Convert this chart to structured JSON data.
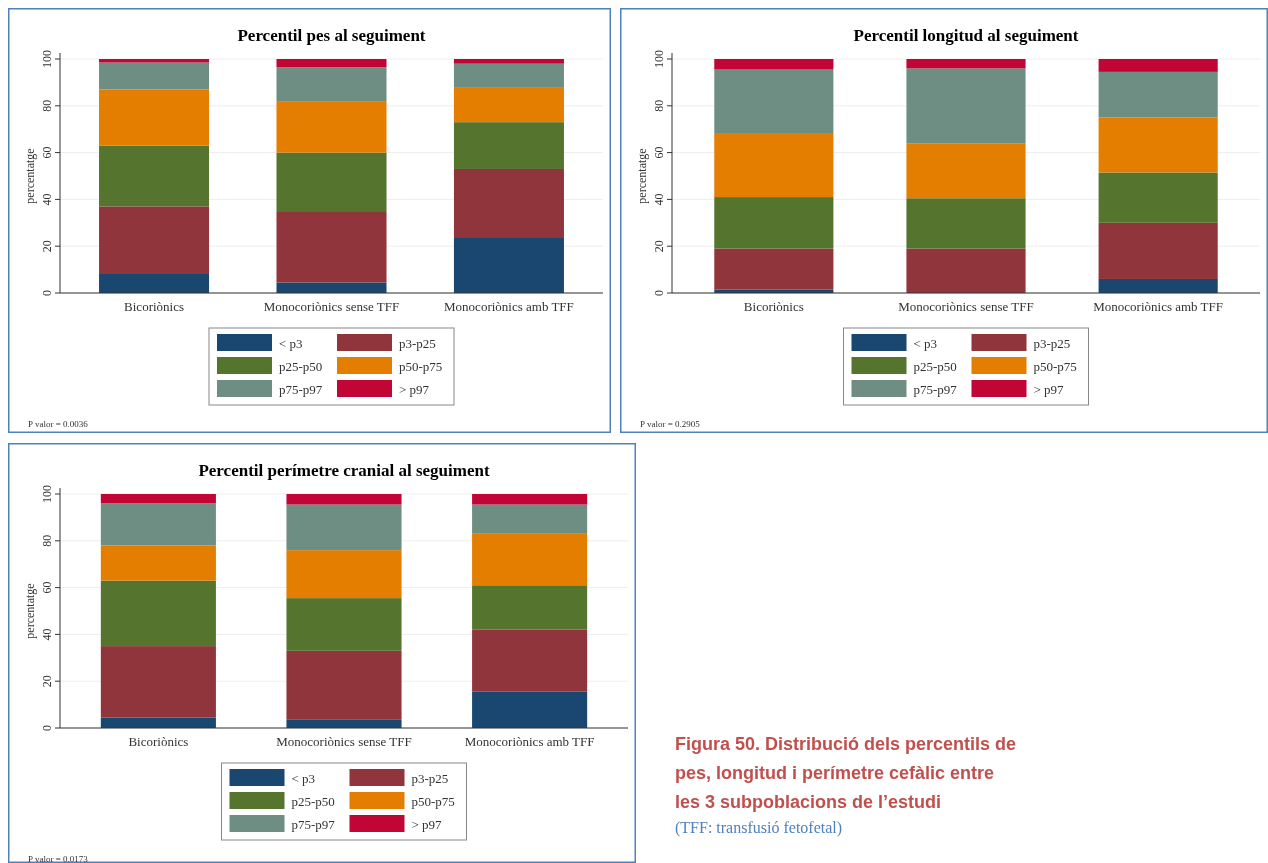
{
  "chart_data": [
    {
      "type": "bar",
      "title": "Percentil pes al seguiment",
      "ylabel": "percentatge",
      "categories": [
        "Bicoriònics",
        "Monocoriònics sense TFF",
        "Monocoriònics amb TFF"
      ],
      "stacked": true,
      "ylim": [
        0,
        100
      ],
      "yticks": [
        0,
        20,
        40,
        60,
        80,
        100
      ],
      "grid": "y",
      "legend": "bottom",
      "annotations": [
        "P valor = 0.0036"
      ],
      "series": [
        {
          "name": "< p3",
          "color": "#1a476f",
          "values": [
            8.5,
            4.5,
            23.5
          ]
        },
        {
          "name": "p3-p25",
          "color": "#90353b",
          "values": [
            28.5,
            30.5,
            29.5
          ]
        },
        {
          "name": "p25-p50",
          "color": "#55752f",
          "values": [
            26,
            25,
            20
          ]
        },
        {
          "name": "p50-p75",
          "color": "#e37e00",
          "values": [
            24,
            22,
            15
          ]
        },
        {
          "name": "p75-p97",
          "color": "#6e8e84",
          "values": [
            11.5,
            14.5,
            10
          ]
        },
        {
          "name": "> p97",
          "color": "#c10534",
          "values": [
            1.5,
            3.5,
            2
          ]
        }
      ]
    },
    {
      "type": "bar",
      "title": "Percentil longitud al seguiment",
      "ylabel": "percentatge",
      "categories": [
        "Bicoriònics",
        "Monocoriònics sense TFF",
        "Monocoriònics amb TFF"
      ],
      "stacked": true,
      "ylim": [
        0,
        100
      ],
      "yticks": [
        0,
        20,
        40,
        60,
        80,
        100
      ],
      "grid": "y",
      "legend": "bottom",
      "annotations": [
        "P valor = 0.2905"
      ],
      "series": [
        {
          "name": "< p3",
          "color": "#1a476f",
          "values": [
            1.5,
            0,
            6
          ]
        },
        {
          "name": "p3-p25",
          "color": "#90353b",
          "values": [
            17.5,
            19,
            24
          ]
        },
        {
          "name": "p25-p50",
          "color": "#55752f",
          "values": [
            22,
            21.5,
            21.5
          ]
        },
        {
          "name": "p50-p75",
          "color": "#e37e00",
          "values": [
            27,
            23.5,
            23.5
          ]
        },
        {
          "name": "p75-p97",
          "color": "#6e8e84",
          "values": [
            27.5,
            32,
            19.5
          ]
        },
        {
          "name": "> p97",
          "color": "#c10534",
          "values": [
            4.5,
            4,
            5.5
          ]
        }
      ]
    },
    {
      "type": "bar",
      "title": "Percentil perímetre cranial al seguiment",
      "ylabel": "percentatge",
      "categories": [
        "Bicoriònics",
        "Monocoriònics sense TFF",
        "Monocoriònics amb TFF"
      ],
      "stacked": true,
      "ylim": [
        0,
        100
      ],
      "yticks": [
        0,
        20,
        40,
        60,
        80,
        100
      ],
      "grid": "y",
      "legend": "bottom",
      "annotations": [
        "P valor = 0.0173"
      ],
      "series": [
        {
          "name": "< p3",
          "color": "#1a476f",
          "values": [
            4.5,
            3.5,
            15.5
          ]
        },
        {
          "name": "p3-p25",
          "color": "#90353b",
          "values": [
            30.5,
            29.5,
            26.5
          ]
        },
        {
          "name": "p25-p50",
          "color": "#55752f",
          "values": [
            28,
            22.5,
            19
          ]
        },
        {
          "name": "p50-p75",
          "color": "#e37e00",
          "values": [
            15,
            20.5,
            22
          ]
        },
        {
          "name": "p75-p97",
          "color": "#6e8e84",
          "values": [
            18,
            19.5,
            12.5
          ]
        },
        {
          "name": "> p97",
          "color": "#c10534",
          "values": [
            4,
            4.5,
            4.5
          ]
        }
      ]
    },
    {
      "type": "other",
      "title": "Figura 50. Distribució dels percentils de pes, longitud i perímetre cefàlic entre les 3 subpoblacions de l’estudi",
      "annotations": [
        "(TFF: transfusió fetofetal)"
      ]
    }
  ]
}
